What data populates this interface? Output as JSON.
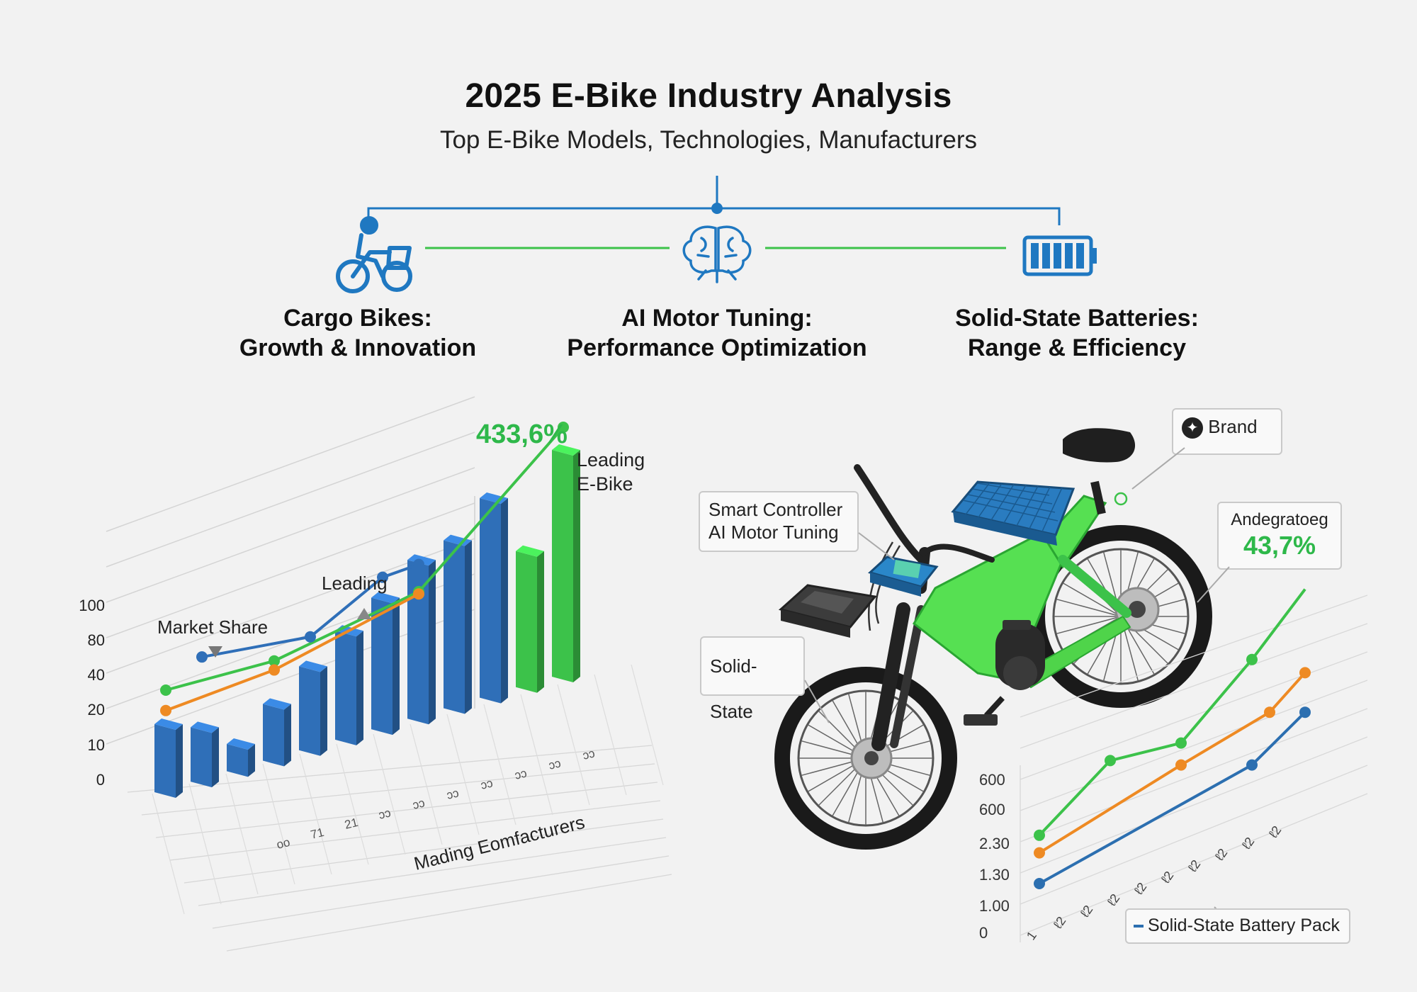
{
  "header": {
    "title": "2025 E-Bike Industry Analysis",
    "subtitle": "Top E-Bike Models, Technologies, Manufacturers"
  },
  "topics": [
    {
      "icon": "cargo-bike-icon",
      "line1": "Cargo Bikes:",
      "line2": "Growth & Innovation"
    },
    {
      "icon": "brain-icon",
      "line1": "AI Motor Tuning:",
      "line2": "Performance Optimization"
    },
    {
      "icon": "battery-icon",
      "line1": "Solid-State Batteries:",
      "line2": "Range & Efficiency"
    }
  ],
  "colors": {
    "blue": "#2f6fb8",
    "green": "#3cc24a",
    "orange": "#ee8a23",
    "line_blue": "#2c6fb0",
    "accent_blue": "#1f78c1"
  },
  "chart_data": [
    {
      "type": "bar",
      "title": "",
      "xlabel": "Mading Eomfacturers",
      "ylabel": "",
      "yticks": [
        "0",
        "10",
        "20",
        "40",
        "80",
        "100"
      ],
      "xticks": [
        "oo",
        "71",
        "21",
        "ɔɔ",
        "ɔɔ",
        "ɔɔ",
        "ɔɔ",
        "ɔɔ",
        "ɔɔ",
        "ɔɔ"
      ],
      "annotations": {
        "market_share": "Market Share",
        "leading": "Leading",
        "leading_ebike": "Leading E-Bike",
        "peak_value": "433,6%"
      },
      "bars": [
        {
          "value": 30,
          "color": "blue"
        },
        {
          "value": 24,
          "color": "blue"
        },
        {
          "value": 12,
          "color": "blue"
        },
        {
          "value": 25,
          "color": "blue"
        },
        {
          "value": 37,
          "color": "blue"
        },
        {
          "value": 48,
          "color": "blue"
        },
        {
          "value": 58,
          "color": "blue"
        },
        {
          "value": 70,
          "color": "blue"
        },
        {
          "value": 74,
          "color": "blue"
        },
        {
          "value": 88,
          "color": "blue"
        },
        {
          "value": 60,
          "color": "green"
        },
        {
          "value": 100,
          "color": "green"
        }
      ],
      "series": [
        {
          "color": "green",
          "points": [
            [
              0,
              45
            ],
            [
              3,
              44
            ],
            [
              7,
              56
            ],
            [
              11,
              110
            ]
          ]
        },
        {
          "color": "orange",
          "points": [
            [
              0,
              36
            ],
            [
              3,
              40
            ],
            [
              7,
              55
            ]
          ]
        },
        {
          "color": "blue",
          "points": [
            [
              1,
              55
            ],
            [
              4,
              50
            ],
            [
              6,
              67
            ],
            [
              7,
              68
            ]
          ]
        }
      ]
    },
    {
      "type": "line",
      "title": "",
      "xlabel": "",
      "ylabel": "",
      "yticks": [
        "0",
        "1.00",
        "1.30",
        "2.30",
        "600",
        "600"
      ],
      "xticks": [
        "1",
        "ℓ2",
        "ℓ2",
        "ℓ2",
        "ℓ2",
        "ℓ2",
        "ℓ2",
        "ℓ2",
        "ℓ2",
        "ℓ2"
      ],
      "annotations": {
        "label": "Andegratoeg",
        "peak_value": "43,7%"
      },
      "legend": "Solid-State Battery Pack",
      "series": [
        {
          "color": "green",
          "points": [
            [
              0,
              1.6
            ],
            [
              2,
              3.3
            ],
            [
              4,
              3.7
            ],
            [
              6,
              5.6
            ],
            [
              7.5,
              7.2
            ]
          ]
        },
        {
          "color": "orange",
          "points": [
            [
              0,
              1.2
            ],
            [
              4,
              3.2
            ],
            [
              6.5,
              4.4
            ],
            [
              7.5,
              5.3
            ]
          ]
        },
        {
          "color": "line_blue",
          "points": [
            [
              0,
              0.5
            ],
            [
              6,
              3.2
            ],
            [
              7.5,
              4.4
            ]
          ]
        }
      ]
    }
  ],
  "bike_callouts": {
    "brand": "Brand",
    "smart_controller_line1": "Smart Controller",
    "smart_controller_line2": "AI Motor Tuning",
    "solid_state": "Solid-State"
  }
}
